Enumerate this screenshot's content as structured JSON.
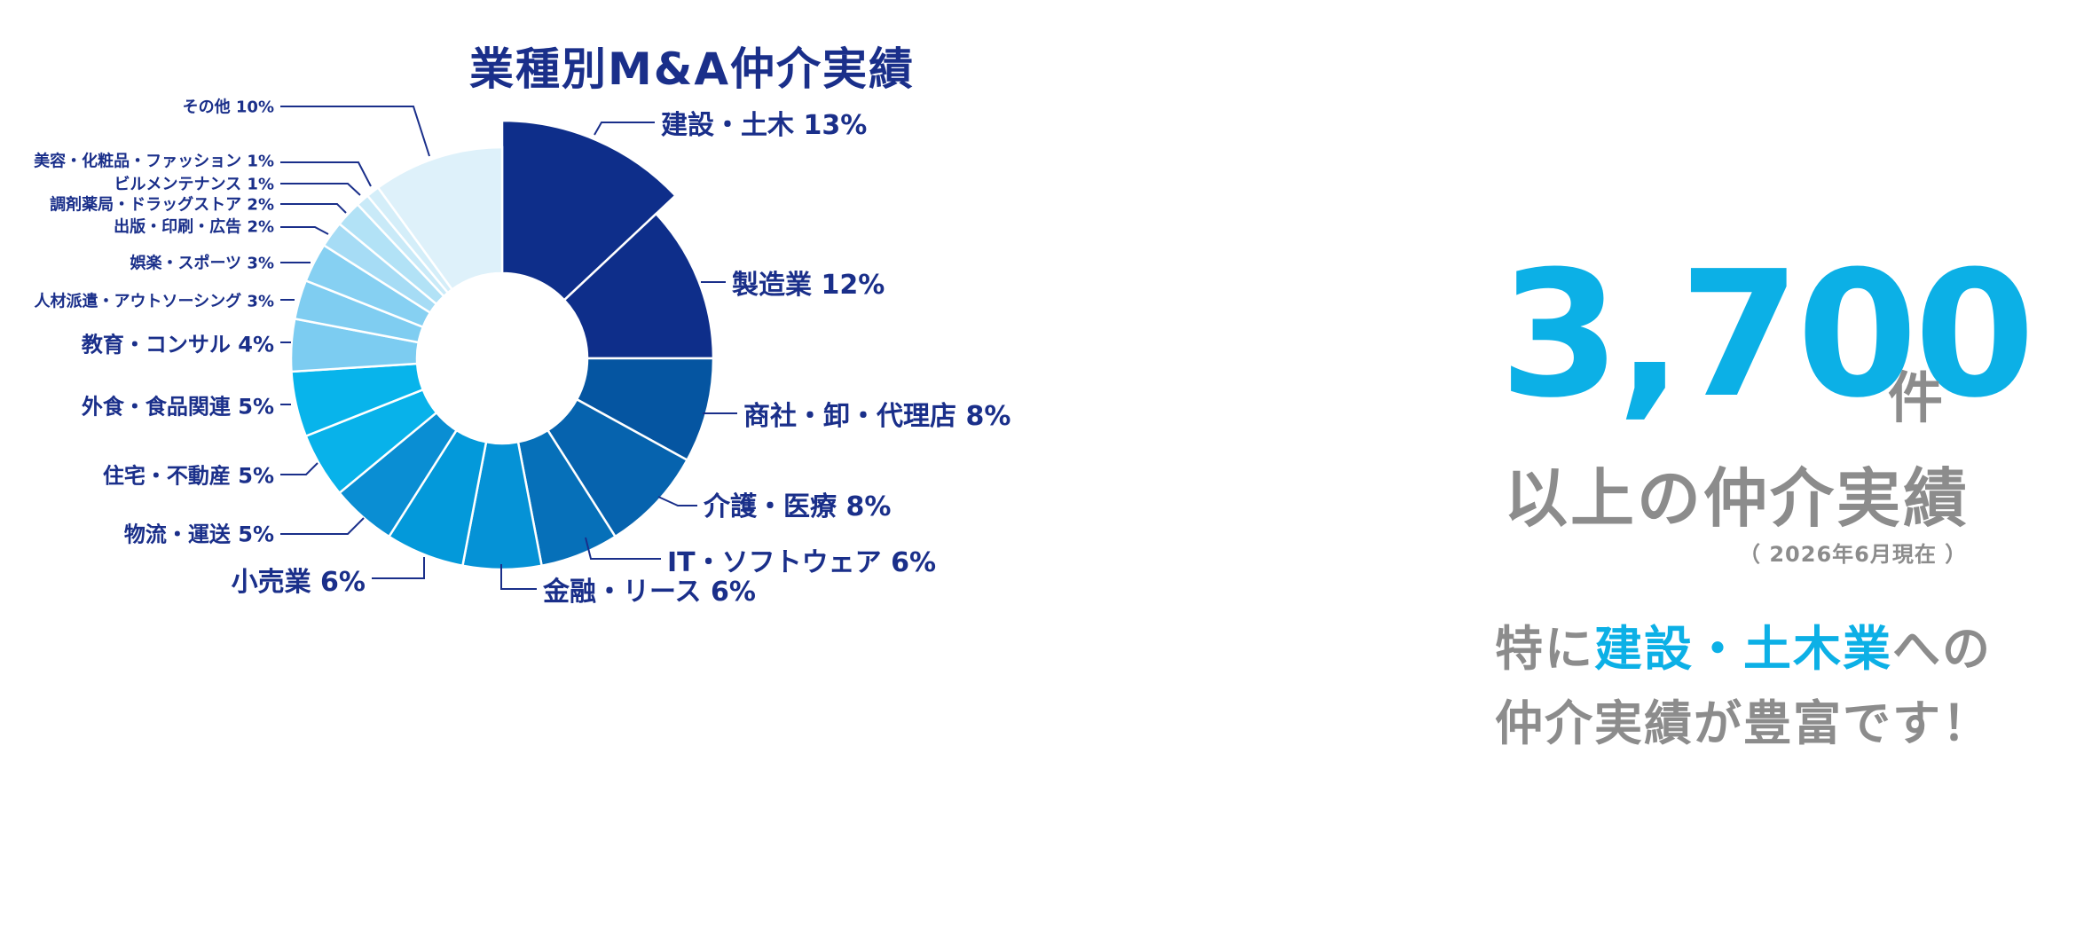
{
  "title": "業種別M&A仲介実績",
  "headline": {
    "number": "3,700",
    "unit": "件",
    "subtitle": "以上の仲介実績",
    "as_of": "（ 2026年6月現在 ）",
    "note_line1_before": "特に",
    "note_highlight": "建設・土木業",
    "note_line1_after": "への",
    "note_line2": "仲介実績が豊富です！",
    "color_accent": "#0cb0e6",
    "color_text": "#8c8c8c"
  },
  "chart_data": {
    "type": "pie",
    "title": "業種別M&A仲介実績",
    "donut": true,
    "series": [
      {
        "label": "建設・土木 13%",
        "value": 13,
        "color": "#0e2e8a"
      },
      {
        "label": "製造業 12%",
        "value": 12,
        "color": "#0e2e8a"
      },
      {
        "label": "商社・卸・代理店 8%",
        "value": 8,
        "color": "#0555a1"
      },
      {
        "label": "介護・医療 8%",
        "value": 8,
        "color": "#0663ae"
      },
      {
        "label": "IT・ソフトウェア 6%",
        "value": 6,
        "color": "#0670b9"
      },
      {
        "label": "金融・リース 6%",
        "value": 6,
        "color": "#0592d6"
      },
      {
        "label": "小売業 6%",
        "value": 6,
        "color": "#0399da"
      },
      {
        "label": "物流・運送 5%",
        "value": 5,
        "color": "#0a8ed3"
      },
      {
        "label": "住宅・不動産 5%",
        "value": 5,
        "color": "#08b2ea"
      },
      {
        "label": "外食・食品関連 5%",
        "value": 5,
        "color": "#08b4eb"
      },
      {
        "label": "教育・コンサル 4%",
        "value": 4,
        "color": "#7cccf1"
      },
      {
        "label": "人材派遣・アウトソーシング 3%",
        "value": 3,
        "color": "#7fcdf1"
      },
      {
        "label": "娯楽・スポーツ 3%",
        "value": 3,
        "color": "#86d0f2"
      },
      {
        "label": "出版・印刷・広告 2%",
        "value": 2,
        "color": "#a6dcf5"
      },
      {
        "label": "調剤薬局・ドラッグストア 2%",
        "value": 2,
        "color": "#b2e2f6"
      },
      {
        "label": "ビルメンテナンス 1%",
        "value": 1,
        "color": "#c9eaf8"
      },
      {
        "label": "美容・化粧品・ファッション 1%",
        "value": 1,
        "color": "#d4eef9"
      },
      {
        "label": "その他 10%",
        "value": 10,
        "color": "#def1fa"
      }
    ]
  }
}
